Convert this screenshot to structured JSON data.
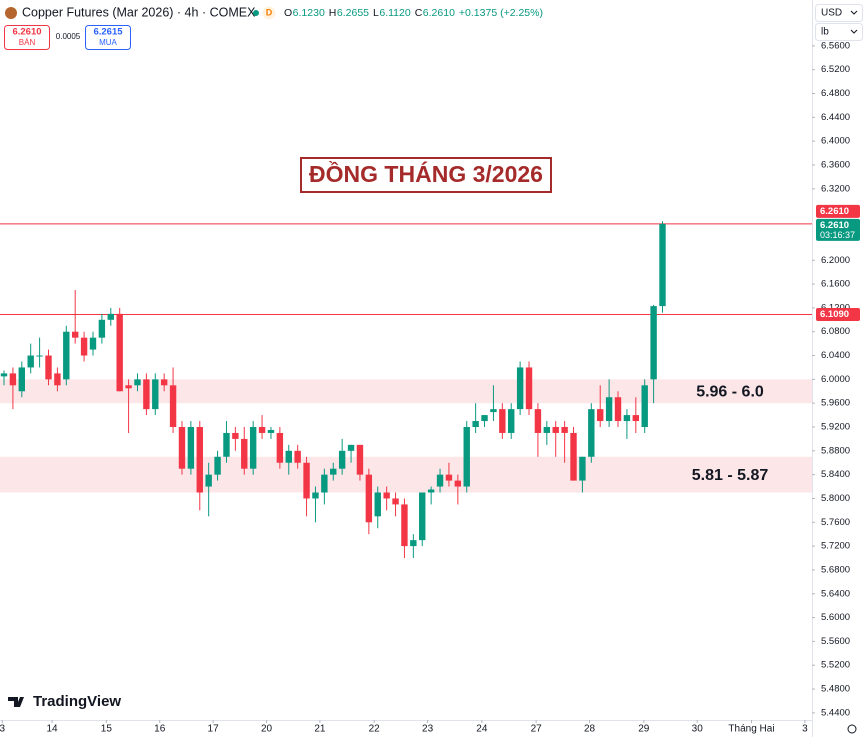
{
  "header": {
    "title": "Copper Futures (Mar 2026) · 4h · COMEX",
    "status": "D",
    "ohlc": [
      {
        "label": "O",
        "value": "6.1230"
      },
      {
        "label": "H",
        "value": "6.2655"
      },
      {
        "label": "L",
        "value": "6.1120"
      },
      {
        "label": "C",
        "value": "6.2610"
      }
    ],
    "change": "+0.1375 (+2.25%)",
    "sell": {
      "price": "6.2610",
      "label": "BÁN"
    },
    "spread": "0.0005",
    "buy": {
      "price": "6.2615",
      "label": "MUA"
    },
    "currency": "USD",
    "unit": "lb",
    "brand": "TradingView"
  },
  "chart_data": {
    "type": "candlestick",
    "title": "ĐỒNG THÁNG 3/2026",
    "up_color": "#089981",
    "down_color": "#f23645",
    "x": [
      0,
      1,
      2,
      3,
      4,
      5,
      6,
      7,
      8,
      9,
      10,
      11,
      12,
      13,
      14,
      15,
      16,
      17,
      18,
      19,
      20,
      21,
      22,
      23,
      24,
      25,
      26,
      27,
      28,
      29,
      30,
      31,
      32,
      33,
      34,
      35,
      36,
      37,
      38,
      39,
      40,
      41,
      42,
      43,
      44,
      45,
      46,
      47,
      48,
      49,
      50,
      51,
      52,
      53,
      54,
      55,
      56,
      57,
      58,
      59,
      60,
      61,
      62,
      63,
      64,
      65,
      66,
      67,
      68,
      69,
      70,
      71,
      72,
      73,
      74
    ],
    "open": [
      6.005,
      6.01,
      5.98,
      6.02,
      6.04,
      6.04,
      6.01,
      6.0,
      6.08,
      6.07,
      6.05,
      6.07,
      6.1,
      6.11,
      5.99,
      5.99,
      6.0,
      5.95,
      6.0,
      5.99,
      5.92,
      5.85,
      5.92,
      5.82,
      5.84,
      5.87,
      5.91,
      5.9,
      5.85,
      5.92,
      5.91,
      5.91,
      5.86,
      5.88,
      5.86,
      5.8,
      5.81,
      5.84,
      5.85,
      5.88,
      5.89,
      5.84,
      5.77,
      5.81,
      5.8,
      5.79,
      5.72,
      5.73,
      5.81,
      5.82,
      5.84,
      5.83,
      5.82,
      5.92,
      5.93,
      5.945,
      5.95,
      5.91,
      5.95,
      6.02,
      5.95,
      5.91,
      5.92,
      5.92,
      5.91,
      5.83,
      5.87,
      5.95,
      5.93,
      5.97,
      5.93,
      5.94,
      5.92,
      6.0,
      6.123
    ],
    "high": [
      6.015,
      6.02,
      6.03,
      6.06,
      6.07,
      6.05,
      6.02,
      6.09,
      6.15,
      6.08,
      6.08,
      6.11,
      6.12,
      6.12,
      6.0,
      6.01,
      6.01,
      6.01,
      6.01,
      6.02,
      5.93,
      5.93,
      5.93,
      5.86,
      5.88,
      5.93,
      5.92,
      5.92,
      5.93,
      5.94,
      5.92,
      5.92,
      5.89,
      5.89,
      5.87,
      5.82,
      5.85,
      5.86,
      5.9,
      5.89,
      5.89,
      5.85,
      5.82,
      5.82,
      5.81,
      5.8,
      5.74,
      5.81,
      5.82,
      5.85,
      5.86,
      5.84,
      5.93,
      5.96,
      5.94,
      5.99,
      5.96,
      5.96,
      6.03,
      6.03,
      5.96,
      5.93,
      5.93,
      5.93,
      5.92,
      5.87,
      5.96,
      5.99,
      6.0,
      5.98,
      5.95,
      5.97,
      6.0,
      6.125,
      6.2655
    ],
    "low": [
      5.99,
      5.95,
      5.97,
      6.01,
      6.02,
      5.99,
      5.98,
      5.99,
      6.06,
      6.03,
      6.04,
      6.06,
      6.09,
      5.98,
      5.91,
      5.98,
      5.94,
      5.94,
      5.98,
      5.91,
      5.84,
      5.84,
      5.78,
      5.77,
      5.83,
      5.86,
      5.88,
      5.84,
      5.84,
      5.9,
      5.9,
      5.85,
      5.84,
      5.85,
      5.77,
      5.76,
      5.79,
      5.83,
      5.84,
      5.86,
      5.83,
      5.74,
      5.75,
      5.78,
      5.77,
      5.7,
      5.7,
      5.72,
      5.79,
      5.81,
      5.82,
      5.79,
      5.81,
      5.91,
      5.92,
      5.93,
      5.9,
      5.9,
      5.94,
      5.94,
      5.87,
      5.89,
      5.87,
      5.86,
      5.83,
      5.81,
      5.86,
      5.92,
      5.92,
      5.92,
      5.9,
      5.91,
      5.91,
      5.96,
      6.112
    ],
    "close": [
      6.01,
      5.99,
      6.02,
      6.04,
      6.04,
      6.0,
      5.99,
      6.08,
      6.07,
      6.04,
      6.07,
      6.1,
      6.11,
      5.98,
      5.985,
      6.0,
      5.95,
      6.0,
      5.99,
      5.92,
      5.85,
      5.92,
      5.81,
      5.84,
      5.87,
      5.91,
      5.9,
      5.85,
      5.92,
      5.91,
      5.915,
      5.86,
      5.88,
      5.86,
      5.8,
      5.81,
      5.84,
      5.85,
      5.88,
      5.89,
      5.84,
      5.76,
      5.81,
      5.8,
      5.79,
      5.72,
      5.73,
      5.81,
      5.815,
      5.84,
      5.83,
      5.82,
      5.92,
      5.93,
      5.94,
      5.95,
      5.91,
      5.95,
      6.02,
      5.95,
      5.91,
      5.92,
      5.91,
      5.91,
      5.83,
      5.87,
      5.95,
      5.93,
      5.97,
      5.93,
      5.94,
      5.93,
      5.99,
      6.123,
      6.261
    ],
    "xlim": [
      -0.45,
      90.8
    ],
    "xticks": [
      {
        "value": -0.2,
        "label": "3"
      },
      {
        "value": 5.4,
        "label": "14"
      },
      {
        "value": 11.5,
        "label": "15"
      },
      {
        "value": 17.5,
        "label": "16"
      },
      {
        "value": 23.5,
        "label": "17"
      },
      {
        "value": 29.5,
        "label": "20"
      },
      {
        "value": 35.5,
        "label": "21"
      },
      {
        "value": 41.6,
        "label": "22"
      },
      {
        "value": 47.6,
        "label": "23"
      },
      {
        "value": 53.7,
        "label": "24"
      },
      {
        "value": 59.8,
        "label": "27"
      },
      {
        "value": 65.8,
        "label": "28"
      },
      {
        "value": 71.9,
        "label": "29"
      },
      {
        "value": 77.9,
        "label": "30"
      },
      {
        "value": 84.0,
        "label": "Tháng Hai"
      },
      {
        "value": 90.0,
        "label": "3"
      }
    ],
    "ylim": [
      5.428,
      6.637
    ],
    "yticks": [
      {
        "value": 5.44,
        "label": "5.4400"
      },
      {
        "value": 5.48,
        "label": "5.4800"
      },
      {
        "value": 5.52,
        "label": "5.5200"
      },
      {
        "value": 5.56,
        "label": "5.5600"
      },
      {
        "value": 5.6,
        "label": "5.6000"
      },
      {
        "value": 5.64,
        "label": "5.6400"
      },
      {
        "value": 5.68,
        "label": "5.6800"
      },
      {
        "value": 5.72,
        "label": "5.7200"
      },
      {
        "value": 5.76,
        "label": "5.7600"
      },
      {
        "value": 5.8,
        "label": "5.8000"
      },
      {
        "value": 5.84,
        "label": "5.8400"
      },
      {
        "value": 5.88,
        "label": "5.8800"
      },
      {
        "value": 5.92,
        "label": "5.9200"
      },
      {
        "value": 5.96,
        "label": "5.9600"
      },
      {
        "value": 6.0,
        "label": "6.0000"
      },
      {
        "value": 6.04,
        "label": "6.0400"
      },
      {
        "value": 6.08,
        "label": "6.0800"
      },
      {
        "value": 6.12,
        "label": "6.1200"
      },
      {
        "value": 6.16,
        "label": "6.1600"
      },
      {
        "value": 6.2,
        "label": "6.2000"
      },
      {
        "value": 6.32,
        "label": "6.3200"
      },
      {
        "value": 6.36,
        "label": "6.3600"
      },
      {
        "value": 6.4,
        "label": "6.4000"
      },
      {
        "value": 6.44,
        "label": "6.4400"
      },
      {
        "value": 6.48,
        "label": "6.4800"
      },
      {
        "value": 6.52,
        "label": "6.5200"
      },
      {
        "value": 6.56,
        "label": "6.5600"
      }
    ],
    "grid": false,
    "zones": [
      {
        "low": 5.96,
        "high": 6.0,
        "label": "5.96 - 6.0",
        "color": "#fde6e8"
      },
      {
        "low": 5.81,
        "high": 5.87,
        "label": "5.81 - 5.87",
        "color": "#fde6e8"
      }
    ],
    "price_lines": [
      {
        "value": 6.261,
        "color": "#f23645"
      },
      {
        "value": 6.109,
        "color": "#f23645"
      }
    ],
    "price_tags": [
      {
        "value": 6.261,
        "label": "6.2610",
        "color": "#f23645",
        "place": "above"
      },
      {
        "value": 6.261,
        "label": "6.2610",
        "time": "03:16:37",
        "color": "#089981",
        "place": "below"
      },
      {
        "value": 6.109,
        "label": "6.1090",
        "color": "#f23645",
        "place": "center"
      }
    ]
  }
}
